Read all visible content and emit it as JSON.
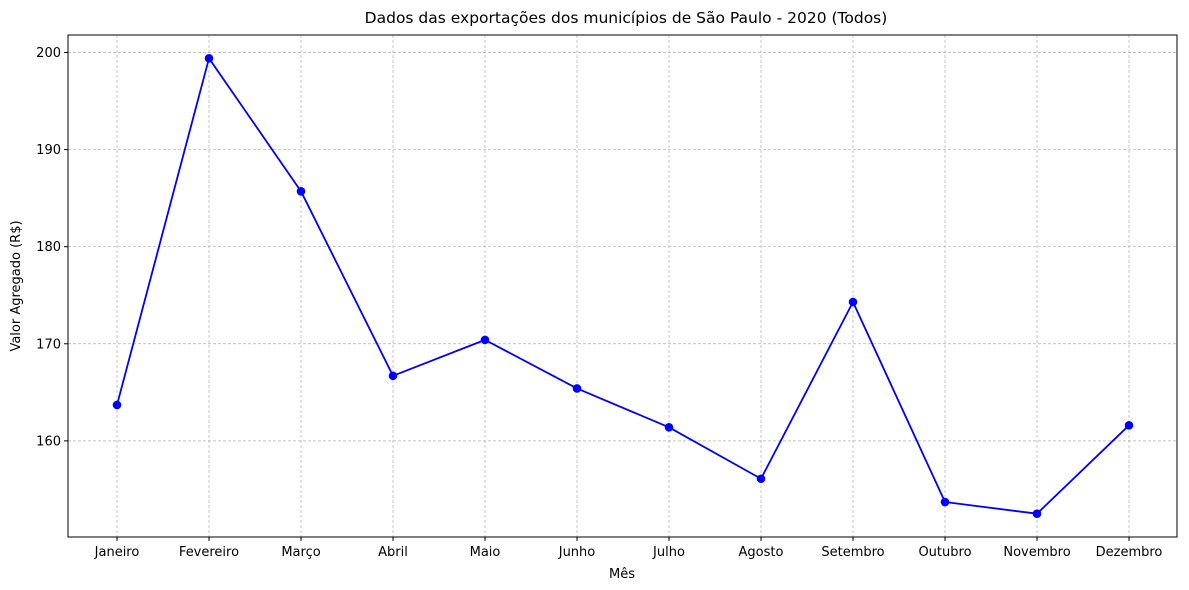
{
  "chart_data": {
    "type": "line",
    "title": "Dados das exportações dos municípios de São Paulo - 2020 (Todos)",
    "xlabel": "Mês",
    "ylabel": "Valor Agregado (R$)",
    "categories": [
      "Janeiro",
      "Fevereiro",
      "Março",
      "Abril",
      "Maio",
      "Junho",
      "Julho",
      "Agosto",
      "Setembro",
      "Outubro",
      "Novembro",
      "Dezembro"
    ],
    "series": [
      {
        "values": [
          163.7,
          199.4,
          185.7,
          166.7,
          170.4,
          165.4,
          161.4,
          156.1,
          174.3,
          153.7,
          152.5,
          161.6
        ],
        "color": "#0000ff",
        "marker": "circle"
      }
    ],
    "yticks": [
      160,
      170,
      180,
      190,
      200
    ],
    "ylim": [
      150.1,
      201.8
    ],
    "grid": true,
    "legend": "none"
  }
}
